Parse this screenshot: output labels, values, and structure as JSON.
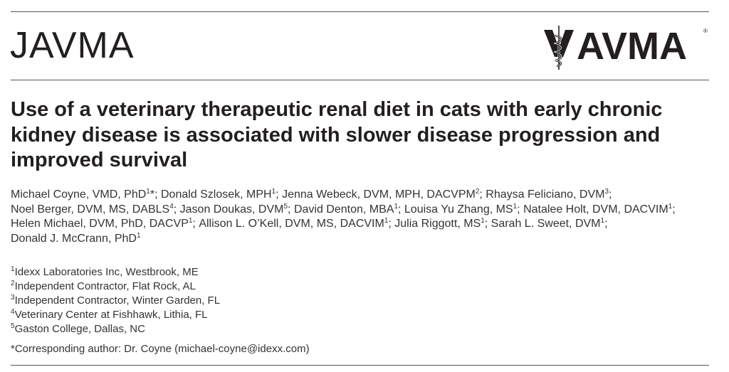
{
  "journal": {
    "name": "JAVMA"
  },
  "logo": {
    "icon": "caduceus-v-icon",
    "text": "AVMA",
    "registered": "®"
  },
  "title": "Use of a veterinary therapeutic renal diet in cats with early chronic kidney disease is associated with slower disease progression and improved survival",
  "authors": [
    {
      "name": "Michael Coyne, VMD, PhD",
      "sup": "1",
      "marker": "*",
      "sep": "; "
    },
    {
      "name": "Donald Szlosek, MPH",
      "sup": "1",
      "marker": "",
      "sep": "; "
    },
    {
      "name": "Jenna Webeck, DVM, MPH, DACVPM",
      "sup": "2",
      "marker": "",
      "sep": "; "
    },
    {
      "name": "Rhaysa Feliciano, DVM",
      "sup": "3",
      "marker": "",
      "sep": "; "
    },
    {
      "name": "Noel Berger, DVM, MS, DABLS",
      "sup": "4",
      "marker": "",
      "sep": "; "
    },
    {
      "name": "Jason Doukas, DVM",
      "sup": "5",
      "marker": "",
      "sep": "; "
    },
    {
      "name": "David Denton, MBA",
      "sup": "1",
      "marker": "",
      "sep": "; "
    },
    {
      "name": "Louisa Yu Zhang, MS",
      "sup": "1",
      "marker": "",
      "sep": "; "
    },
    {
      "name": "Natalee Holt, DVM, DACVIM",
      "sup": "1",
      "marker": "",
      "sep": "; "
    },
    {
      "name": "Helen Michael, DVM, PhD, DACVP",
      "sup": "1",
      "marker": "",
      "sep": "; "
    },
    {
      "name": "Allison L. O’Kell, DVM, MS, DACVIM",
      "sup": "1",
      "marker": "",
      "sep": "; "
    },
    {
      "name": "Julia Riggott, MS",
      "sup": "1",
      "marker": "",
      "sep": "; "
    },
    {
      "name": "Sarah L. Sweet, DVM",
      "sup": "1",
      "marker": "",
      "sep": "; "
    },
    {
      "name": "Donald J. McCrann, PhD",
      "sup": "1",
      "marker": "",
      "sep": ""
    }
  ],
  "affiliations": [
    {
      "num": "1",
      "text": "Idexx Laboratories Inc, Westbrook, ME"
    },
    {
      "num": "2",
      "text": "Independent Contractor, Flat Rock, AL"
    },
    {
      "num": "3",
      "text": "Independent Contractor, Winter Garden, FL"
    },
    {
      "num": "4",
      "text": "Veterinary Center at Fishhawk, Lithia, FL"
    },
    {
      "num": "5",
      "text": "Gaston College, Dallas, NC"
    }
  ],
  "corresponding": "*Corresponding author: Dr. Coyne (michael-coyne@idexx.com)"
}
